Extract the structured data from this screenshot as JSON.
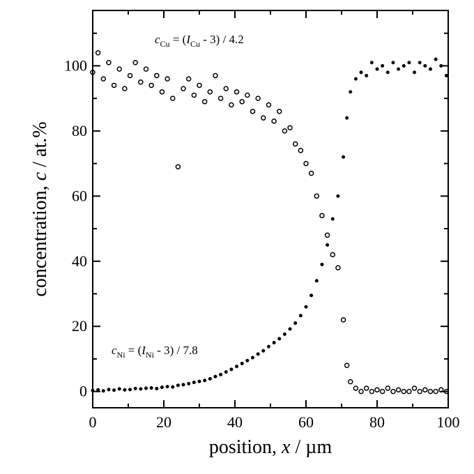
{
  "chart_data": {
    "type": "scatter",
    "xlabel": [
      "position, ",
      "x",
      " / µm"
    ],
    "ylabel": [
      "concentration, ",
      "c",
      " / at.%"
    ],
    "annotations": [
      {
        "parts": [
          "c",
          "Cu",
          " = (",
          "I",
          "Cu",
          " - 3) / 4.2"
        ]
      },
      {
        "parts": [
          "c",
          "Ni",
          " = (",
          "I",
          "Ni",
          " - 3) / 7.8"
        ]
      }
    ],
    "xlim": [
      0,
      100
    ],
    "xticks": [
      0,
      20,
      40,
      60,
      80,
      100
    ],
    "xminorticks": [
      10,
      30,
      50,
      70,
      90
    ],
    "ylim": [
      -5,
      117
    ],
    "yticks": [
      0,
      20,
      40,
      60,
      80,
      100
    ],
    "yminorticks": [
      10,
      30,
      50,
      70,
      90,
      110
    ],
    "grid": false,
    "series": [
      {
        "color": "#000000",
        "marker": "open",
        "x": [
          0,
          1.5,
          3,
          4.5,
          6,
          7.5,
          9,
          10.5,
          12,
          13.5,
          15,
          16.5,
          18,
          19.5,
          21,
          22.5,
          24,
          25.5,
          27,
          28.5,
          30,
          31.5,
          33,
          34.5,
          36,
          37.5,
          39,
          40.5,
          42,
          43.5,
          45,
          46.5,
          48,
          49.5,
          51,
          52.5,
          54,
          55.5,
          57,
          58.5,
          60,
          61.5,
          63,
          64.5,
          66,
          67.5,
          69,
          70.5,
          71.5,
          72.5,
          74,
          75.5,
          77,
          78.5,
          80,
          81.5,
          83,
          84.5,
          86,
          87.5,
          89,
          90.5,
          92,
          93.5,
          95,
          96.5,
          98,
          99.5
        ],
        "values": [
          98,
          104,
          96,
          101,
          94,
          99,
          93,
          97,
          101,
          95,
          99,
          94,
          97,
          92,
          96,
          90,
          69,
          93,
          96,
          91,
          94,
          89,
          92,
          97,
          90,
          93,
          88,
          92,
          89,
          91,
          86,
          90,
          84,
          88,
          83,
          86,
          80,
          81,
          76,
          74,
          70,
          67,
          60,
          54,
          48,
          42,
          38,
          22,
          8,
          3,
          1,
          0,
          1,
          0,
          0.5,
          0,
          1,
          0,
          0.5,
          0,
          0,
          1,
          0,
          0.5,
          0,
          0,
          0.5,
          0
        ]
      },
      {
        "color": "#000000",
        "marker": "filled",
        "x": [
          0,
          1.5,
          3,
          4.5,
          6,
          7.5,
          9,
          10.5,
          12,
          13.5,
          15,
          16.5,
          18,
          19.5,
          21,
          22.5,
          24,
          25.5,
          27,
          28.5,
          30,
          31.5,
          33,
          34.5,
          36,
          37.5,
          39,
          40.5,
          42,
          43.5,
          45,
          46.5,
          48,
          49.5,
          51,
          52.5,
          54,
          55.5,
          57,
          58.5,
          60,
          61.5,
          63,
          64.5,
          66,
          67.5,
          69,
          70.5,
          71.5,
          72.5,
          74,
          75.5,
          77,
          78.5,
          80,
          81.5,
          83,
          84.5,
          86,
          87.5,
          89,
          90.5,
          92,
          93.5,
          95,
          96.5,
          98,
          99.5
        ],
        "values": [
          0.3,
          0.5,
          0.2,
          0.6,
          0.4,
          0.8,
          0.5,
          0.6,
          0.9,
          0.8,
          1,
          1.1,
          0.9,
          1.3,
          1.5,
          1.4,
          1.9,
          2.1,
          2.4,
          2.8,
          3.1,
          3.4,
          3.9,
          4.6,
          5.2,
          6,
          6.8,
          7.7,
          8.6,
          9.5,
          10.4,
          11.5,
          12.5,
          13.8,
          15,
          16.2,
          17.6,
          19.2,
          21,
          23.3,
          26,
          29.5,
          34,
          39,
          45,
          53,
          60,
          72,
          84,
          92,
          96,
          98,
          97,
          101,
          99,
          100,
          98,
          101,
          99,
          100,
          101,
          98,
          101,
          100,
          99,
          102,
          100,
          97
        ]
      }
    ]
  }
}
